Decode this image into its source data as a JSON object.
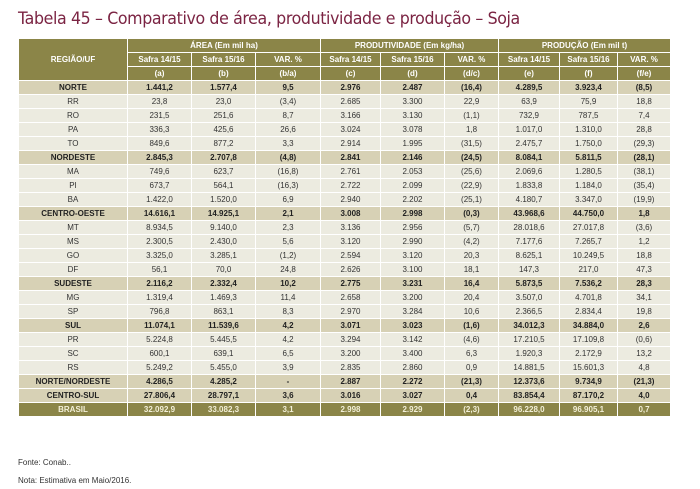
{
  "title": "Tabela 45 – Comparativo de área, produtividade e produção – Soja",
  "header": {
    "region": "REGIÃO/UF",
    "groups": [
      "ÁREA (Em mil ha)",
      "PRODUTIVIDADE (Em kg/ha)",
      "PRODUÇÃO (Em mil t)"
    ],
    "subs": [
      "Safra 14/15",
      "Safra 15/16",
      "VAR. %",
      "Safra 14/15",
      "Safra 15/16",
      "VAR. %",
      "Safra 14/15",
      "Safra 15/16",
      "VAR. %"
    ],
    "letters": [
      "(a)",
      "(b)",
      "(b/a)",
      "(c)",
      "(d)",
      "(d/c)",
      "(e)",
      "(f)",
      "(f/e)"
    ]
  },
  "rows": [
    {
      "type": "r",
      "cells": [
        "NORTE",
        "1.441,2",
        "1.577,4",
        "9,5",
        "2.976",
        "2.487",
        "(16,4)",
        "4.289,5",
        "3.923,4",
        "(8,5)"
      ]
    },
    {
      "type": "s",
      "cells": [
        "RR",
        "23,8",
        "23,0",
        "(3,4)",
        "2.685",
        "3.300",
        "22,9",
        "63,9",
        "75,9",
        "18,8"
      ]
    },
    {
      "type": "s",
      "cells": [
        "RO",
        "231,5",
        "251,6",
        "8,7",
        "3.166",
        "3.130",
        "(1,1)",
        "732,9",
        "787,5",
        "7,4"
      ]
    },
    {
      "type": "s",
      "cells": [
        "PA",
        "336,3",
        "425,6",
        "26,6",
        "3.024",
        "3.078",
        "1,8",
        "1.017,0",
        "1.310,0",
        "28,8"
      ]
    },
    {
      "type": "s",
      "cells": [
        "TO",
        "849,6",
        "877,2",
        "3,3",
        "2.914",
        "1.995",
        "(31,5)",
        "2.475,7",
        "1.750,0",
        "(29,3)"
      ]
    },
    {
      "type": "r",
      "cells": [
        "NORDESTE",
        "2.845,3",
        "2.707,8",
        "(4,8)",
        "2.841",
        "2.146",
        "(24,5)",
        "8.084,1",
        "5.811,5",
        "(28,1)"
      ]
    },
    {
      "type": "s",
      "cells": [
        "MA",
        "749,6",
        "623,7",
        "(16,8)",
        "2.761",
        "2.053",
        "(25,6)",
        "2.069,6",
        "1.280,5",
        "(38,1)"
      ]
    },
    {
      "type": "s",
      "cells": [
        "PI",
        "673,7",
        "564,1",
        "(16,3)",
        "2.722",
        "2.099",
        "(22,9)",
        "1.833,8",
        "1.184,0",
        "(35,4)"
      ]
    },
    {
      "type": "s",
      "cells": [
        "BA",
        "1.422,0",
        "1.520,0",
        "6,9",
        "2.940",
        "2.202",
        "(25,1)",
        "4.180,7",
        "3.347,0",
        "(19,9)"
      ]
    },
    {
      "type": "r",
      "cells": [
        "CENTRO-OESTE",
        "14.616,1",
        "14.925,1",
        "2,1",
        "3.008",
        "2.998",
        "(0,3)",
        "43.968,6",
        "44.750,0",
        "1,8"
      ]
    },
    {
      "type": "s",
      "cells": [
        "MT",
        "8.934,5",
        "9.140,0",
        "2,3",
        "3.136",
        "2.956",
        "(5,7)",
        "28.018,6",
        "27.017,8",
        "(3,6)"
      ]
    },
    {
      "type": "s",
      "cells": [
        "MS",
        "2.300,5",
        "2.430,0",
        "5,6",
        "3.120",
        "2.990",
        "(4,2)",
        "7.177,6",
        "7.265,7",
        "1,2"
      ]
    },
    {
      "type": "s",
      "cells": [
        "GO",
        "3.325,0",
        "3.285,1",
        "(1,2)",
        "2.594",
        "3.120",
        "20,3",
        "8.625,1",
        "10.249,5",
        "18,8"
      ]
    },
    {
      "type": "s",
      "cells": [
        "DF",
        "56,1",
        "70,0",
        "24,8",
        "2.626",
        "3.100",
        "18,1",
        "147,3",
        "217,0",
        "47,3"
      ]
    },
    {
      "type": "r",
      "cells": [
        "SUDESTE",
        "2.116,2",
        "2.332,4",
        "10,2",
        "2.775",
        "3.231",
        "16,4",
        "5.873,5",
        "7.536,2",
        "28,3"
      ]
    },
    {
      "type": "s",
      "cells": [
        "MG",
        "1.319,4",
        "1.469,3",
        "11,4",
        "2.658",
        "3.200",
        "20,4",
        "3.507,0",
        "4.701,8",
        "34,1"
      ]
    },
    {
      "type": "s",
      "cells": [
        "SP",
        "796,8",
        "863,1",
        "8,3",
        "2.970",
        "3.284",
        "10,6",
        "2.366,5",
        "2.834,4",
        "19,8"
      ]
    },
    {
      "type": "r",
      "cells": [
        "SUL",
        "11.074,1",
        "11.539,6",
        "4,2",
        "3.071",
        "3.023",
        "(1,6)",
        "34.012,3",
        "34.884,0",
        "2,6"
      ]
    },
    {
      "type": "s",
      "cells": [
        "PR",
        "5.224,8",
        "5.445,5",
        "4,2",
        "3.294",
        "3.142",
        "(4,6)",
        "17.210,5",
        "17.109,8",
        "(0,6)"
      ]
    },
    {
      "type": "s",
      "cells": [
        "SC",
        "600,1",
        "639,1",
        "6,5",
        "3.200",
        "3.400",
        "6,3",
        "1.920,3",
        "2.172,9",
        "13,2"
      ]
    },
    {
      "type": "s",
      "cells": [
        "RS",
        "5.249,2",
        "5.455,0",
        "3,9",
        "2.835",
        "2.860",
        "0,9",
        "14.881,5",
        "15.601,3",
        "4,8"
      ]
    },
    {
      "type": "r",
      "cells": [
        "NORTE/NORDESTE",
        "4.286,5",
        "4.285,2",
        "-",
        "2.887",
        "2.272",
        "(21,3)",
        "12.373,6",
        "9.734,9",
        "(21,3)"
      ]
    },
    {
      "type": "r",
      "cells": [
        "CENTRO-SUL",
        "27.806,4",
        "28.797,1",
        "3,6",
        "3.016",
        "3.027",
        "0,4",
        "83.854,4",
        "87.170,2",
        "4,0"
      ]
    },
    {
      "type": "b",
      "cells": [
        "BRASIL",
        "32.092,9",
        "33.082,3",
        "3,1",
        "2.998",
        "2.929",
        "(2,3)",
        "96.228,0",
        "96.905,1",
        "0,7"
      ]
    }
  ],
  "notes": {
    "source": "Fonte: Conab..",
    "note": "Nota: Estimativa em  Maio/2016."
  },
  "colors": {
    "header": "#8b8548",
    "region_row": "#d7d1b5",
    "state_row": "#ecebe0",
    "title": "#7b2443"
  }
}
